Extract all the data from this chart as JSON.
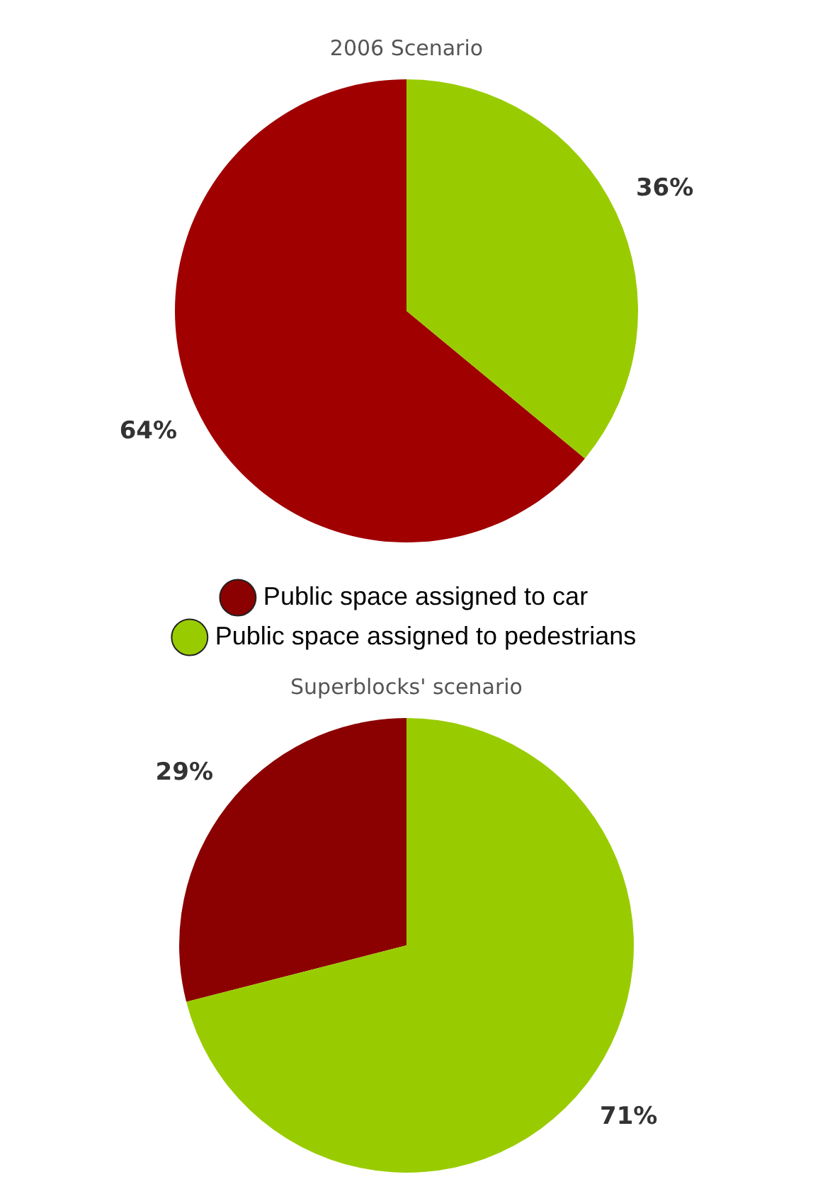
{
  "chart_data": [
    {
      "type": "pie",
      "title": "2006 Scenario",
      "categories": [
        null,
        null
      ],
      "values": [
        64,
        36
      ],
      "colors": [
        "#a00000",
        "#99cc00"
      ],
      "value_labels": [
        "64%",
        "36%"
      ]
    },
    {
      "type": "pie",
      "title": "Superblocks' scenario",
      "categories": [
        "Public space assigned to car",
        "Public space assigned to pedestrians"
      ],
      "values": [
        29,
        71
      ],
      "colors": [
        "#8b0000",
        "#99cc00"
      ],
      "value_labels": [
        "29%",
        "71%"
      ],
      "legend": "top"
    }
  ]
}
